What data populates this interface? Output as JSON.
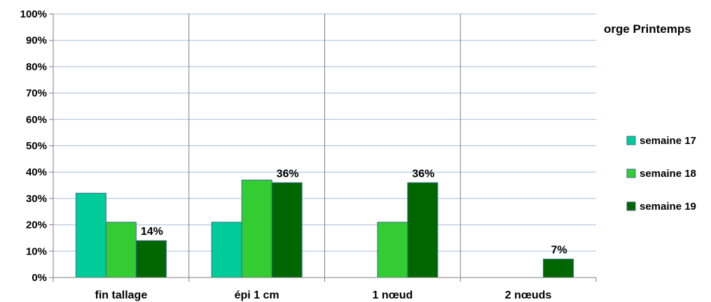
{
  "chart_data": {
    "type": "bar",
    "title": "orge Printemps",
    "categories": [
      "fin tallage",
      "épi 1 cm",
      "1 nœud",
      "2 nœuds"
    ],
    "series": [
      {
        "name": "semaine 17",
        "color": "#00CC99",
        "values": [
          0.32,
          0.21,
          null,
          null
        ]
      },
      {
        "name": "semaine 18",
        "color": "#33CC33",
        "values": [
          0.21,
          0.37,
          0.21,
          null
        ]
      },
      {
        "name": "semaine 19",
        "color": "#006600",
        "values": [
          0.14,
          0.36,
          0.36,
          0.07
        ]
      }
    ],
    "data_labels": [
      {
        "category": "fin tallage",
        "series": "semaine 19",
        "text": "14%"
      },
      {
        "category": "épi 1 cm",
        "series": "semaine 19",
        "text": "36%"
      },
      {
        "category": "1 nœud",
        "series": "semaine 19",
        "text": "36%"
      },
      {
        "category": "2 nœuds",
        "series": "semaine 19",
        "text": "7%"
      }
    ],
    "ylim": [
      0,
      1
    ],
    "yticks": [
      "0%",
      "10%",
      "20%",
      "30%",
      "40%",
      "50%",
      "60%",
      "70%",
      "80%",
      "90%",
      "100%"
    ],
    "grid": true,
    "legend_position": "right"
  }
}
